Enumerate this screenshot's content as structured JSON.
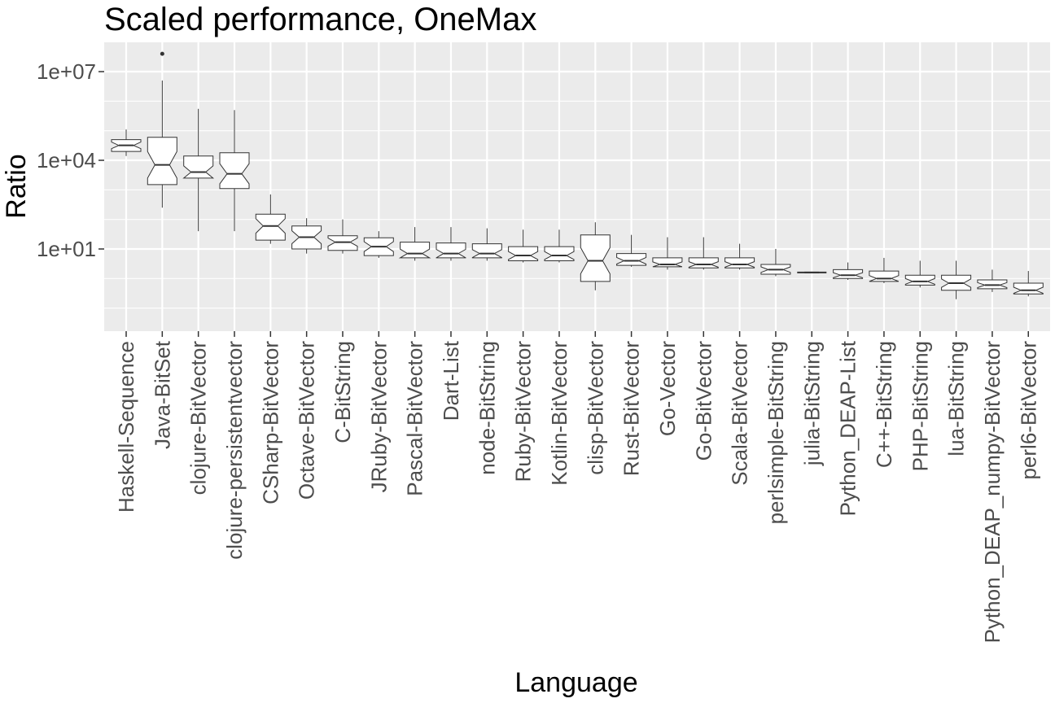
{
  "chart_data": {
    "type": "boxplot",
    "notched": true,
    "title": "Scaled performance, OneMax",
    "xlabel": "Language",
    "ylabel": "Ratio",
    "yscale": "log10",
    "ylim": [
      0.01,
      100000000
    ],
    "yticks": [
      {
        "value": 10,
        "label": "1e+01"
      },
      {
        "value": 10000,
        "label": "1e+04"
      },
      {
        "value": 10000000,
        "label": "1e+07"
      }
    ],
    "grid": true,
    "legend": "none",
    "colors": {
      "panel": "#ebebeb",
      "grid": "#ffffff",
      "box_fill": "#ffffff",
      "box_line": "#333333"
    },
    "categories": [
      "Haskell-Sequence",
      "Java-BitSet",
      "clojure-BitVector",
      "clojure-persistentvector",
      "CSharp-BitVector",
      "Octave-BitVector",
      "C-BitString",
      "JRuby-BitVector",
      "Pascal-BitVector",
      "Dart-List",
      "node-BitString",
      "Ruby-BitVector",
      "Kotlin-BitVector",
      "clisp-BitVector",
      "Rust-BitVector",
      "Go-Vector",
      "Go-BitVector",
      "Scala-BitVector",
      "perlsimple-BitString",
      "julia-BitString",
      "Python_DEAP-List",
      "C++-BitString",
      "PHP-BitString",
      "lua-BitString",
      "Python_DEAP_numpy-BitVector",
      "perl6-BitVector"
    ],
    "boxes": [
      {
        "min": 14000,
        "q1": 20000,
        "median": 32000,
        "q3": 50000,
        "max": 110000,
        "outliers": []
      },
      {
        "min": 250,
        "q1": 1500,
        "median": 7000,
        "q3": 60000,
        "max": 5000000,
        "outliers": [
          40000000
        ]
      },
      {
        "min": 40,
        "q1": 2500,
        "median": 4000,
        "q3": 14000,
        "max": 550000,
        "outliers": []
      },
      {
        "min": 40,
        "q1": 1100,
        "median": 3500,
        "q3": 18000,
        "max": 500000,
        "outliers": []
      },
      {
        "min": 15,
        "q1": 20,
        "median": 60,
        "q3": 150,
        "max": 700,
        "outliers": []
      },
      {
        "min": 7,
        "q1": 10,
        "median": 25,
        "q3": 60,
        "max": 110,
        "outliers": []
      },
      {
        "min": 7,
        "q1": 9,
        "median": 17,
        "q3": 28,
        "max": 100,
        "outliers": []
      },
      {
        "min": 5,
        "q1": 6,
        "median": 12,
        "q3": 24,
        "max": 40,
        "outliers": []
      },
      {
        "min": 4,
        "q1": 5,
        "median": 7,
        "q3": 17,
        "max": 55,
        "outliers": []
      },
      {
        "min": 4,
        "q1": 5,
        "median": 7,
        "q3": 16,
        "max": 55,
        "outliers": []
      },
      {
        "min": 4,
        "q1": 5,
        "median": 7,
        "q3": 15,
        "max": 50,
        "outliers": []
      },
      {
        "min": 3.5,
        "q1": 4,
        "median": 6,
        "q3": 12,
        "max": 45,
        "outliers": []
      },
      {
        "min": 3.5,
        "q1": 4,
        "median": 6,
        "q3": 12,
        "max": 45,
        "outliers": []
      },
      {
        "min": 0.4,
        "q1": 0.8,
        "median": 4,
        "q3": 30,
        "max": 80,
        "outliers": []
      },
      {
        "min": 2.5,
        "q1": 2.8,
        "median": 4,
        "q3": 7,
        "max": 30,
        "outliers": []
      },
      {
        "min": 2,
        "q1": 2.5,
        "median": 3,
        "q3": 5,
        "max": 25,
        "outliers": []
      },
      {
        "min": 2,
        "q1": 2.3,
        "median": 3,
        "q3": 5,
        "max": 25,
        "outliers": []
      },
      {
        "min": 2,
        "q1": 2.3,
        "median": 3,
        "q3": 5,
        "max": 15,
        "outliers": []
      },
      {
        "min": 1.2,
        "q1": 1.4,
        "median": 2,
        "q3": 3,
        "max": 10,
        "outliers": []
      },
      {
        "min": 1.5,
        "q1": 1.55,
        "median": 1.6,
        "q3": 1.65,
        "max": 1.7,
        "outliers": []
      },
      {
        "min": 0.9,
        "q1": 1,
        "median": 1.3,
        "q3": 2,
        "max": 3.5,
        "outliers": []
      },
      {
        "min": 0.7,
        "q1": 0.8,
        "median": 1,
        "q3": 1.8,
        "max": 5,
        "outliers": []
      },
      {
        "min": 0.5,
        "q1": 0.6,
        "median": 0.8,
        "q3": 1.3,
        "max": 4,
        "outliers": []
      },
      {
        "min": 0.2,
        "q1": 0.4,
        "median": 0.7,
        "q3": 1.3,
        "max": 4,
        "outliers": []
      },
      {
        "min": 0.35,
        "q1": 0.45,
        "median": 0.6,
        "q3": 0.9,
        "max": 2,
        "outliers": []
      },
      {
        "min": 0.25,
        "q1": 0.3,
        "median": 0.4,
        "q3": 0.7,
        "max": 1.8,
        "outliers": []
      }
    ]
  }
}
